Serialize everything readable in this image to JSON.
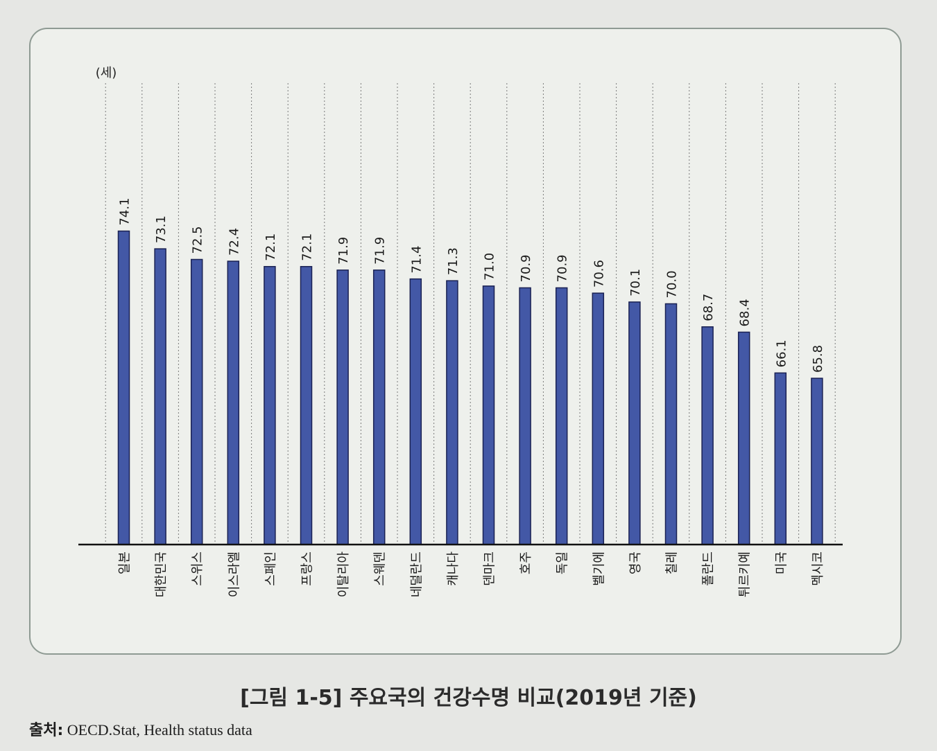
{
  "chart_data": {
    "type": "bar",
    "ylabel": "(세)",
    "categories": [
      "일본",
      "대한민국",
      "스위스",
      "이스라엘",
      "스페인",
      "프랑스",
      "이탈리아",
      "스웨덴",
      "네덜란드",
      "캐나다",
      "덴마크",
      "호주",
      "독일",
      "벨기에",
      "영국",
      "칠레",
      "폴란드",
      "튀르키예",
      "미국",
      "멕시코"
    ],
    "values": [
      74.1,
      73.1,
      72.5,
      72.4,
      72.1,
      72.1,
      71.9,
      71.9,
      71.4,
      71.3,
      71.0,
      70.9,
      70.9,
      70.6,
      70.1,
      70.0,
      68.7,
      68.4,
      66.1,
      65.8
    ],
    "data_labels": [
      "74.1",
      "73.1",
      "72.5",
      "72.4",
      "72.1",
      "72.1",
      "71.9",
      "71.9",
      "71.4",
      "71.3",
      "71.0",
      "70.9",
      "70.9",
      "70.6",
      "70.1",
      "70.0",
      "68.7",
      "68.4",
      "66.1",
      "65.8"
    ],
    "grid": "vertical-dotted",
    "bar_color": "#4358a6",
    "bar_stroke": "#1a2152"
  },
  "caption": "[그림 1-5] 주요국의 건강수명 비교(2019년 기준)",
  "source": {
    "label": "출처:",
    "text": "OECD.Stat, Health status data"
  }
}
